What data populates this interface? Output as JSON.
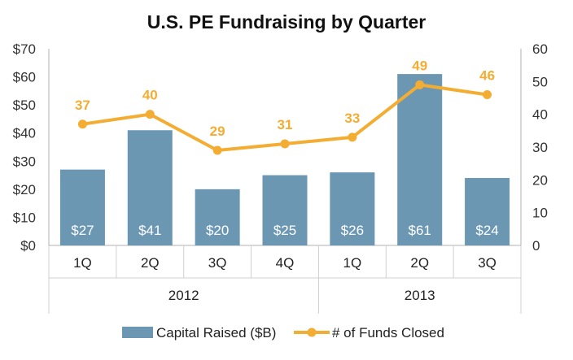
{
  "colors": {
    "bar": "#6b97b3",
    "line": "#f3ad33",
    "axis": "#b0b0b0",
    "gridline": "#d0d0d0"
  },
  "chart_data": {
    "type": "bar",
    "title": "U.S. PE Fundraising by Quarter",
    "categories": [
      "1Q",
      "2Q",
      "3Q",
      "4Q",
      "1Q",
      "2Q",
      "3Q"
    ],
    "groups": [
      {
        "label": "2012",
        "span": 4
      },
      {
        "label": "2013",
        "span": 3
      }
    ],
    "series": [
      {
        "name": "Capital Raised ($B)",
        "type": "bar",
        "axis": "left",
        "values": [
          27,
          41,
          20,
          25,
          26,
          61,
          24
        ],
        "labels": [
          "$27",
          "$41",
          "$20",
          "$25",
          "$26",
          "$61",
          "$24"
        ]
      },
      {
        "name": "# of Funds Closed",
        "type": "line",
        "axis": "right",
        "values": [
          37,
          40,
          29,
          31,
          33,
          49,
          46
        ],
        "labels": [
          "37",
          "40",
          "29",
          "31",
          "33",
          "49",
          "46"
        ]
      }
    ],
    "left_axis": {
      "ylim": [
        0,
        70
      ],
      "ticks": [
        0,
        10,
        20,
        30,
        40,
        50,
        60,
        70
      ],
      "tick_labels": [
        "$0",
        "$10",
        "$20",
        "$30",
        "$40",
        "$50",
        "$60",
        "$70"
      ]
    },
    "right_axis": {
      "ylim": [
        0,
        60
      ],
      "ticks": [
        0,
        10,
        20,
        30,
        40,
        50,
        60
      ],
      "tick_labels": [
        "0",
        "10",
        "20",
        "30",
        "40",
        "50",
        "60"
      ]
    },
    "legend": {
      "position": "bottom",
      "items": [
        "Capital Raised ($B)",
        "# of Funds Closed"
      ]
    }
  }
}
